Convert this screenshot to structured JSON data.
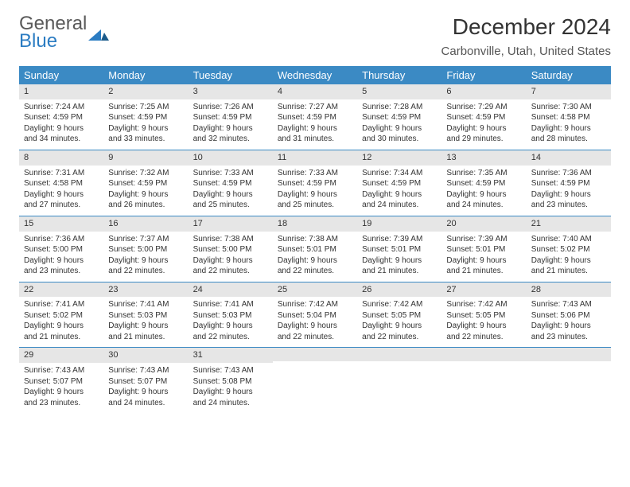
{
  "logo": {
    "general": "General",
    "blue": "Blue"
  },
  "title": "December 2024",
  "location": "Carbonville, Utah, United States",
  "dow": [
    "Sunday",
    "Monday",
    "Tuesday",
    "Wednesday",
    "Thursday",
    "Friday",
    "Saturday"
  ],
  "colors": {
    "header_bg": "#3b8ac4",
    "header_fg": "#ffffff",
    "daynum_bg": "#e6e6e6",
    "rule": "#3b8ac4",
    "logo_gray": "#5a5a5a",
    "logo_blue": "#2b7cc2"
  },
  "weeks": [
    [
      {
        "n": "1",
        "sr": "Sunrise: 7:24 AM",
        "ss": "Sunset: 4:59 PM",
        "d1": "Daylight: 9 hours",
        "d2": "and 34 minutes."
      },
      {
        "n": "2",
        "sr": "Sunrise: 7:25 AM",
        "ss": "Sunset: 4:59 PM",
        "d1": "Daylight: 9 hours",
        "d2": "and 33 minutes."
      },
      {
        "n": "3",
        "sr": "Sunrise: 7:26 AM",
        "ss": "Sunset: 4:59 PM",
        "d1": "Daylight: 9 hours",
        "d2": "and 32 minutes."
      },
      {
        "n": "4",
        "sr": "Sunrise: 7:27 AM",
        "ss": "Sunset: 4:59 PM",
        "d1": "Daylight: 9 hours",
        "d2": "and 31 minutes."
      },
      {
        "n": "5",
        "sr": "Sunrise: 7:28 AM",
        "ss": "Sunset: 4:59 PM",
        "d1": "Daylight: 9 hours",
        "d2": "and 30 minutes."
      },
      {
        "n": "6",
        "sr": "Sunrise: 7:29 AM",
        "ss": "Sunset: 4:59 PM",
        "d1": "Daylight: 9 hours",
        "d2": "and 29 minutes."
      },
      {
        "n": "7",
        "sr": "Sunrise: 7:30 AM",
        "ss": "Sunset: 4:58 PM",
        "d1": "Daylight: 9 hours",
        "d2": "and 28 minutes."
      }
    ],
    [
      {
        "n": "8",
        "sr": "Sunrise: 7:31 AM",
        "ss": "Sunset: 4:58 PM",
        "d1": "Daylight: 9 hours",
        "d2": "and 27 minutes."
      },
      {
        "n": "9",
        "sr": "Sunrise: 7:32 AM",
        "ss": "Sunset: 4:59 PM",
        "d1": "Daylight: 9 hours",
        "d2": "and 26 minutes."
      },
      {
        "n": "10",
        "sr": "Sunrise: 7:33 AM",
        "ss": "Sunset: 4:59 PM",
        "d1": "Daylight: 9 hours",
        "d2": "and 25 minutes."
      },
      {
        "n": "11",
        "sr": "Sunrise: 7:33 AM",
        "ss": "Sunset: 4:59 PM",
        "d1": "Daylight: 9 hours",
        "d2": "and 25 minutes."
      },
      {
        "n": "12",
        "sr": "Sunrise: 7:34 AM",
        "ss": "Sunset: 4:59 PM",
        "d1": "Daylight: 9 hours",
        "d2": "and 24 minutes."
      },
      {
        "n": "13",
        "sr": "Sunrise: 7:35 AM",
        "ss": "Sunset: 4:59 PM",
        "d1": "Daylight: 9 hours",
        "d2": "and 24 minutes."
      },
      {
        "n": "14",
        "sr": "Sunrise: 7:36 AM",
        "ss": "Sunset: 4:59 PM",
        "d1": "Daylight: 9 hours",
        "d2": "and 23 minutes."
      }
    ],
    [
      {
        "n": "15",
        "sr": "Sunrise: 7:36 AM",
        "ss": "Sunset: 5:00 PM",
        "d1": "Daylight: 9 hours",
        "d2": "and 23 minutes."
      },
      {
        "n": "16",
        "sr": "Sunrise: 7:37 AM",
        "ss": "Sunset: 5:00 PM",
        "d1": "Daylight: 9 hours",
        "d2": "and 22 minutes."
      },
      {
        "n": "17",
        "sr": "Sunrise: 7:38 AM",
        "ss": "Sunset: 5:00 PM",
        "d1": "Daylight: 9 hours",
        "d2": "and 22 minutes."
      },
      {
        "n": "18",
        "sr": "Sunrise: 7:38 AM",
        "ss": "Sunset: 5:01 PM",
        "d1": "Daylight: 9 hours",
        "d2": "and 22 minutes."
      },
      {
        "n": "19",
        "sr": "Sunrise: 7:39 AM",
        "ss": "Sunset: 5:01 PM",
        "d1": "Daylight: 9 hours",
        "d2": "and 21 minutes."
      },
      {
        "n": "20",
        "sr": "Sunrise: 7:39 AM",
        "ss": "Sunset: 5:01 PM",
        "d1": "Daylight: 9 hours",
        "d2": "and 21 minutes."
      },
      {
        "n": "21",
        "sr": "Sunrise: 7:40 AM",
        "ss": "Sunset: 5:02 PM",
        "d1": "Daylight: 9 hours",
        "d2": "and 21 minutes."
      }
    ],
    [
      {
        "n": "22",
        "sr": "Sunrise: 7:41 AM",
        "ss": "Sunset: 5:02 PM",
        "d1": "Daylight: 9 hours",
        "d2": "and 21 minutes."
      },
      {
        "n": "23",
        "sr": "Sunrise: 7:41 AM",
        "ss": "Sunset: 5:03 PM",
        "d1": "Daylight: 9 hours",
        "d2": "and 21 minutes."
      },
      {
        "n": "24",
        "sr": "Sunrise: 7:41 AM",
        "ss": "Sunset: 5:03 PM",
        "d1": "Daylight: 9 hours",
        "d2": "and 22 minutes."
      },
      {
        "n": "25",
        "sr": "Sunrise: 7:42 AM",
        "ss": "Sunset: 5:04 PM",
        "d1": "Daylight: 9 hours",
        "d2": "and 22 minutes."
      },
      {
        "n": "26",
        "sr": "Sunrise: 7:42 AM",
        "ss": "Sunset: 5:05 PM",
        "d1": "Daylight: 9 hours",
        "d2": "and 22 minutes."
      },
      {
        "n": "27",
        "sr": "Sunrise: 7:42 AM",
        "ss": "Sunset: 5:05 PM",
        "d1": "Daylight: 9 hours",
        "d2": "and 22 minutes."
      },
      {
        "n": "28",
        "sr": "Sunrise: 7:43 AM",
        "ss": "Sunset: 5:06 PM",
        "d1": "Daylight: 9 hours",
        "d2": "and 23 minutes."
      }
    ],
    [
      {
        "n": "29",
        "sr": "Sunrise: 7:43 AM",
        "ss": "Sunset: 5:07 PM",
        "d1": "Daylight: 9 hours",
        "d2": "and 23 minutes."
      },
      {
        "n": "30",
        "sr": "Sunrise: 7:43 AM",
        "ss": "Sunset: 5:07 PM",
        "d1": "Daylight: 9 hours",
        "d2": "and 24 minutes."
      },
      {
        "n": "31",
        "sr": "Sunrise: 7:43 AM",
        "ss": "Sunset: 5:08 PM",
        "d1": "Daylight: 9 hours",
        "d2": "and 24 minutes."
      },
      {
        "empty": true
      },
      {
        "empty": true
      },
      {
        "empty": true
      },
      {
        "empty": true
      }
    ]
  ]
}
